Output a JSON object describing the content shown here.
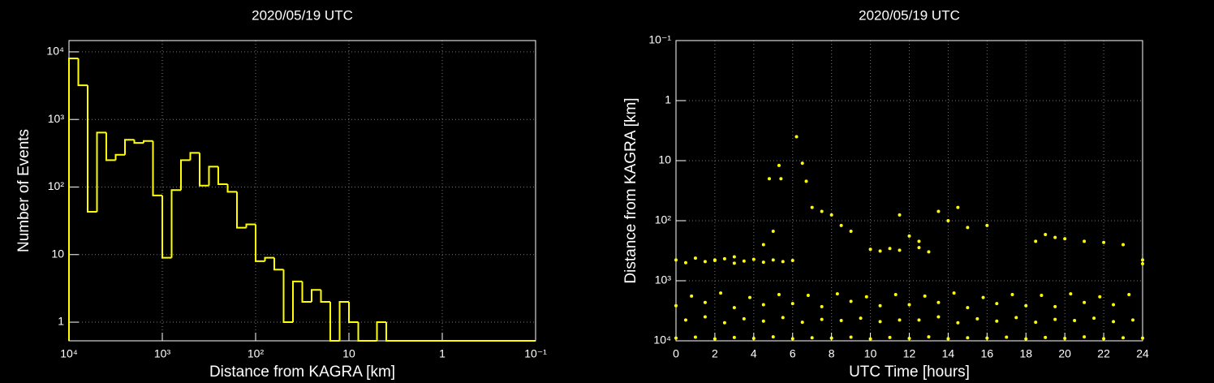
{
  "chart_data": [
    {
      "type": "histogram",
      "title": "2020/05/19 UTC",
      "xlabel": "Distance from KAGRA [km]",
      "ylabel": "Number of Events",
      "color": "#ffff00",
      "log_x": true,
      "log_y": true,
      "grid": true,
      "bins": [
        10000,
        7943,
        6310,
        5012,
        3981,
        3162,
        2512,
        1995,
        1585,
        1259,
        1000,
        794.3,
        631,
        501.2,
        398.1,
        316.2,
        251.2,
        199.5,
        158.5,
        125.9,
        100,
        79.43,
        63.1,
        50.12,
        39.81,
        31.62,
        25.12,
        19.95,
        15.85,
        12.59,
        10,
        7.943,
        6.31,
        5.012,
        3.981,
        3.162,
        2.512,
        1.995,
        1.585,
        1.259,
        1,
        0.7943,
        0.631,
        0.5012,
        0.3981,
        0.3162,
        0.2512,
        0.1995,
        0.1585,
        0.1259,
        0.1
      ],
      "values": [
        8000,
        3200,
        43,
        640,
        250,
        300,
        500,
        450,
        480,
        75,
        9,
        90,
        250,
        320,
        105,
        200,
        110,
        85,
        25,
        28,
        8,
        9,
        6,
        1,
        4,
        2,
        3,
        2,
        0,
        2,
        1,
        0,
        0,
        1,
        0,
        0,
        0,
        0,
        0,
        0,
        0,
        0,
        0,
        0,
        0,
        0,
        0,
        0,
        0,
        0
      ],
      "xlim": [
        10000,
        0.1
      ],
      "ylim": [
        0.53,
        14700
      ],
      "xticks": [
        {
          "value": 10000,
          "label": "10⁴"
        },
        {
          "value": 1000,
          "label": "10³"
        },
        {
          "value": 100,
          "label": "10²"
        },
        10,
        1,
        {
          "value": 0.1,
          "label": "10⁻¹"
        }
      ],
      "yticks": [
        1,
        10,
        {
          "value": 100,
          "label": "10²"
        },
        {
          "value": 1000,
          "label": "10³"
        },
        {
          "value": 10000,
          "label": "10⁴"
        }
      ]
    },
    {
      "type": "scatter",
      "title": "2020/05/19 UTC",
      "xlabel": "UTC Time [hours]",
      "ylabel": "Distance from KAGRA [km]",
      "color": "#ffff00",
      "log_y": true,
      "grid": true,
      "x": [
        0,
        1,
        2,
        3,
        4,
        5,
        6,
        7,
        8,
        9,
        10,
        11,
        12,
        13,
        14,
        15,
        16,
        17,
        18,
        19,
        20,
        21,
        22,
        23,
        24,
        0.5,
        1.5,
        2.5,
        3.5,
        4.5,
        5.5,
        6.5,
        7.5,
        8.5,
        9.5,
        10.5,
        11.5,
        12.5,
        13.5,
        14.5,
        15.5,
        16.5,
        17.5,
        18.5,
        19.5,
        20.5,
        21.5,
        22.5,
        23.5,
        0,
        1.5,
        3,
        4.5,
        6,
        7.5,
        9,
        10.5,
        12,
        13.5,
        15,
        16.5,
        18,
        19.5,
        21,
        22.5,
        0.8,
        2.3,
        3.8,
        5.3,
        6.8,
        8.3,
        9.8,
        11.3,
        12.8,
        14.3,
        15.8,
        17.3,
        18.8,
        20.3,
        21.8,
        23.3,
        0,
        0.5,
        1,
        1.5,
        2,
        2.5,
        3,
        3.5,
        4,
        4.5,
        5,
        5.5,
        6,
        10,
        10.5,
        11,
        11.5,
        12.5,
        13,
        5.3,
        5.4,
        4.8,
        6.2,
        6.5,
        6.7,
        7,
        7.5,
        8,
        8.5,
        9,
        11.5,
        12,
        12.5,
        13.5,
        14,
        14.5,
        15,
        16,
        18.5,
        19,
        19.5,
        20,
        21,
        22,
        23,
        5,
        4.5,
        24,
        24,
        2,
        3
      ],
      "values": [
        9000,
        8700,
        9300,
        8800,
        9100,
        8600,
        9200,
        8900,
        9000,
        8700,
        9300,
        8800,
        9100,
        8600,
        9200,
        8900,
        9000,
        8700,
        9300,
        8800,
        9100,
        8600,
        9200,
        8900,
        9000,
        4500,
        4000,
        5000,
        4300,
        4700,
        4100,
        4900,
        4400,
        4600,
        4200,
        4800,
        4500,
        4500,
        4000,
        5000,
        4300,
        4700,
        4100,
        4900,
        4400,
        4600,
        4200,
        4800,
        4500,
        2600,
        2300,
        2800,
        2500,
        2400,
        2700,
        2200,
        2600,
        2500,
        2300,
        2800,
        2400,
        2600,
        2700,
        2300,
        2500,
        1800,
        1600,
        1900,
        1700,
        1750,
        1650,
        1850,
        1700,
        1800,
        1600,
        1900,
        1700,
        1750,
        1650,
        1850,
        1700,
        450,
        500,
        420,
        480,
        460,
        430,
        510,
        470,
        440,
        490,
        450,
        480,
        460,
        300,
        320,
        290,
        310,
        280,
        330,
        12,
        20,
        20,
        4,
        11,
        22,
        60,
        70,
        80,
        120,
        150,
        80,
        180,
        220,
        70,
        100,
        60,
        130,
        120,
        220,
        170,
        190,
        200,
        220,
        230,
        250,
        150,
        250,
        450,
        520,
        450,
        400
      ],
      "xlim": [
        0,
        24
      ],
      "ylim": [
        10000,
        0.1
      ],
      "xticks": [
        0,
        2,
        4,
        6,
        8,
        10,
        12,
        14,
        16,
        18,
        20,
        22,
        24
      ],
      "yticks": [
        {
          "value": 10000,
          "label": "10⁴"
        },
        {
          "value": 1000,
          "label": "10³"
        },
        {
          "value": 100,
          "label": "10²"
        },
        10,
        1,
        {
          "value": 0.1,
          "label": "10⁻¹"
        }
      ]
    }
  ]
}
